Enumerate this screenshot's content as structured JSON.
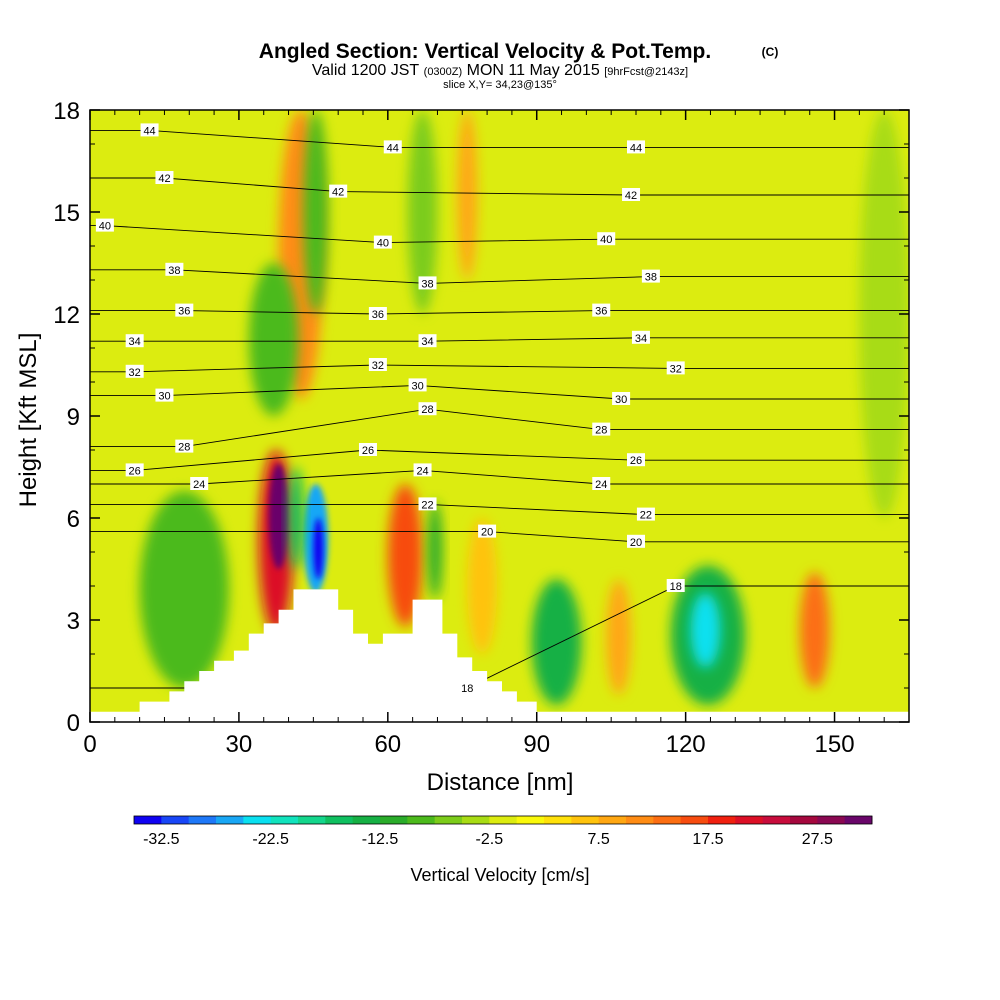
{
  "chart_data": {
    "type": "heatmap",
    "title": "Angled Section: Vertical Velocity & Pot.Temp.",
    "title_mark": "(C)",
    "subtitle_parts": [
      "Valid 1200 JST",
      "(0300Z)",
      "MON 11 May 2015",
      "[9hrFcst@2143z]"
    ],
    "slice_label": "slice X,Y= 34,23@135°",
    "xlabel": "Distance [nm]",
    "ylabel": "Height [Kft MSL]",
    "xlim": [
      0,
      165
    ],
    "ylim": [
      0,
      18
    ],
    "xticks": [
      0,
      30,
      60,
      90,
      120,
      150
    ],
    "yticks": [
      0,
      3,
      6,
      9,
      12,
      15,
      18
    ],
    "colorbar": {
      "label": "Vertical Velocity [cm/s]",
      "tick_labels": [
        "-32.5",
        "-22.5",
        "-12.5",
        "-2.5",
        "7.5",
        "17.5",
        "27.5"
      ],
      "tick_values": [
        -32.5,
        -22.5,
        -12.5,
        -2.5,
        7.5,
        17.5,
        27.5
      ],
      "bins": [
        -35,
        -32.5,
        -30,
        -27.5,
        -25,
        -22.5,
        -20,
        -17.5,
        -15,
        -12.5,
        -10,
        -7.5,
        -5,
        -2.5,
        0,
        2.5,
        5,
        7.5,
        10,
        12.5,
        15,
        17.5,
        20,
        22.5,
        25,
        27.5,
        30,
        32.5
      ],
      "colors": [
        "#0f02f2",
        "#1846f7",
        "#1e78f8",
        "#19a7f5",
        "#0ae0f0",
        "#11e3bd",
        "#14d68c",
        "#10c060",
        "#16b044",
        "#2aac2a",
        "#4cba1c",
        "#7ccc1a",
        "#a8dc14",
        "#dcec10",
        "#faf90b",
        "#ffe10a",
        "#ffc30c",
        "#ffa712",
        "#ff8c14",
        "#fc6e12",
        "#f74c10",
        "#f0200f",
        "#dc0f26",
        "#c80c3c",
        "#a5083e",
        "#8a0852",
        "#6a066a"
      ]
    },
    "vertical_velocity_cells": [
      {
        "x": [
          34,
          41
        ],
        "z": [
          2.6,
          8.0
        ],
        "w": 22
      },
      {
        "x": [
          36,
          40
        ],
        "z": [
          4.5,
          7.6
        ],
        "w": 32
      },
      {
        "x": [
          43,
          48
        ],
        "z": [
          3.8,
          7.0
        ],
        "w": -26
      },
      {
        "x": [
          45,
          47
        ],
        "z": [
          4.2,
          6.0
        ],
        "w": -33
      },
      {
        "x": [
          40,
          43
        ],
        "z": [
          4.5,
          7.5
        ],
        "w": -16
      },
      {
        "x": [
          60,
          67
        ],
        "z": [
          2.8,
          7.0
        ],
        "w": 16
      },
      {
        "x": [
          68,
          71
        ],
        "z": [
          3.6,
          6.5
        ],
        "w": -11
      },
      {
        "x": [
          89,
          99
        ],
        "z": [
          0.5,
          4.2
        ],
        "w": -13
      },
      {
        "x": [
          117,
          132
        ],
        "z": [
          0.5,
          4.6
        ],
        "w": -15
      },
      {
        "x": [
          121,
          127
        ],
        "z": [
          1.6,
          3.8
        ],
        "w": -24
      },
      {
        "x": [
          143,
          149
        ],
        "z": [
          1.0,
          4.4
        ],
        "w": 14
      },
      {
        "x": [
          104,
          109
        ],
        "z": [
          0.8,
          4.2
        ],
        "w": 8
      },
      {
        "x": [
          76,
          82
        ],
        "z": [
          2.0,
          6.0
        ],
        "w": 6
      },
      {
        "x": [
          10,
          28
        ],
        "z": [
          1.0,
          6.8
        ],
        "w": -8
      },
      {
        "x": [
          38,
          47
        ],
        "z": [
          9.5,
          18.0
        ],
        "w": 12
      },
      {
        "x": [
          43,
          48
        ],
        "z": [
          12.0,
          18.0
        ],
        "w": -10
      },
      {
        "x": [
          64,
          70
        ],
        "z": [
          12.0,
          18.0
        ],
        "w": -6
      },
      {
        "x": [
          74,
          78
        ],
        "z": [
          13.0,
          18.0
        ],
        "w": 8
      },
      {
        "x": [
          32,
          42
        ],
        "z": [
          9.0,
          13.5
        ],
        "w": -10
      },
      {
        "x": [
          155,
          165
        ],
        "z": [
          6.0,
          18.0
        ],
        "w": -4
      }
    ],
    "pot_temp_contours": [
      {
        "value": 18,
        "labels": [
          {
            "x": 76,
            "z": 1.0
          },
          {
            "x": 118,
            "z": 4.0
          }
        ]
      },
      {
        "value": 20,
        "labels": [
          {
            "x": 80,
            "z": 5.6
          },
          {
            "x": 110,
            "z": 5.3
          }
        ]
      },
      {
        "value": 22,
        "labels": [
          {
            "x": 68,
            "z": 6.4
          },
          {
            "x": 112,
            "z": 6.1
          }
        ]
      },
      {
        "value": 24,
        "labels": [
          {
            "x": 22,
            "z": 7.0
          },
          {
            "x": 67,
            "z": 7.4
          },
          {
            "x": 103,
            "z": 7.0
          }
        ]
      },
      {
        "value": 26,
        "labels": [
          {
            "x": 9,
            "z": 7.4
          },
          {
            "x": 56,
            "z": 8.0
          },
          {
            "x": 110,
            "z": 7.7
          }
        ]
      },
      {
        "value": 28,
        "labels": [
          {
            "x": 19,
            "z": 8.1
          },
          {
            "x": 68,
            "z": 9.2
          },
          {
            "x": 103,
            "z": 8.6
          }
        ]
      },
      {
        "value": 30,
        "labels": [
          {
            "x": 15,
            "z": 9.6
          },
          {
            "x": 66,
            "z": 9.9
          },
          {
            "x": 107,
            "z": 9.5
          }
        ]
      },
      {
        "value": 32,
        "labels": [
          {
            "x": 9,
            "z": 10.3
          },
          {
            "x": 58,
            "z": 10.5
          },
          {
            "x": 118,
            "z": 10.4
          }
        ]
      },
      {
        "value": 34,
        "labels": [
          {
            "x": 9,
            "z": 11.2
          },
          {
            "x": 68,
            "z": 11.2
          },
          {
            "x": 111,
            "z": 11.3
          }
        ]
      },
      {
        "value": 36,
        "labels": [
          {
            "x": 19,
            "z": 12.1
          },
          {
            "x": 58,
            "z": 12.0
          },
          {
            "x": 103,
            "z": 12.1
          }
        ]
      },
      {
        "value": 38,
        "labels": [
          {
            "x": 17,
            "z": 13.3
          },
          {
            "x": 68,
            "z": 12.9
          },
          {
            "x": 113,
            "z": 13.1
          }
        ]
      },
      {
        "value": 40,
        "labels": [
          {
            "x": 3,
            "z": 14.6
          },
          {
            "x": 59,
            "z": 14.1
          },
          {
            "x": 104,
            "z": 14.2
          }
        ]
      },
      {
        "value": 42,
        "labels": [
          {
            "x": 15,
            "z": 16.0
          },
          {
            "x": 50,
            "z": 15.6
          },
          {
            "x": 109,
            "z": 15.5
          }
        ]
      },
      {
        "value": 44,
        "labels": [
          {
            "x": 12,
            "z": 17.4
          },
          {
            "x": 61,
            "z": 16.9
          },
          {
            "x": 110,
            "z": 16.9
          }
        ]
      }
    ],
    "terrain_steps": [
      [
        0,
        0.3
      ],
      [
        10,
        0.3
      ],
      [
        10,
        0.6
      ],
      [
        16,
        0.6
      ],
      [
        16,
        0.9
      ],
      [
        19,
        0.9
      ],
      [
        19,
        1.2
      ],
      [
        22,
        1.2
      ],
      [
        22,
        1.5
      ],
      [
        25,
        1.5
      ],
      [
        25,
        1.8
      ],
      [
        29,
        1.8
      ],
      [
        29,
        2.1
      ],
      [
        32,
        2.1
      ],
      [
        32,
        2.6
      ],
      [
        35,
        2.6
      ],
      [
        35,
        2.9
      ],
      [
        38,
        2.9
      ],
      [
        38,
        3.3
      ],
      [
        41,
        3.3
      ],
      [
        41,
        3.9
      ],
      [
        50,
        3.9
      ],
      [
        50,
        3.3
      ],
      [
        53,
        3.3
      ],
      [
        53,
        2.6
      ],
      [
        56,
        2.6
      ],
      [
        56,
        2.3
      ],
      [
        59,
        2.3
      ],
      [
        59,
        2.6
      ],
      [
        65,
        2.6
      ],
      [
        65,
        3.6
      ],
      [
        71,
        3.6
      ],
      [
        71,
        2.6
      ],
      [
        74,
        2.6
      ],
      [
        74,
        1.9
      ],
      [
        77,
        1.9
      ],
      [
        77,
        1.5
      ],
      [
        80,
        1.5
      ],
      [
        80,
        1.2
      ],
      [
        83,
        1.2
      ],
      [
        83,
        0.9
      ],
      [
        86,
        0.9
      ],
      [
        86,
        0.6
      ],
      [
        90,
        0.6
      ],
      [
        90,
        0.3
      ],
      [
        165,
        0.3
      ]
    ]
  }
}
